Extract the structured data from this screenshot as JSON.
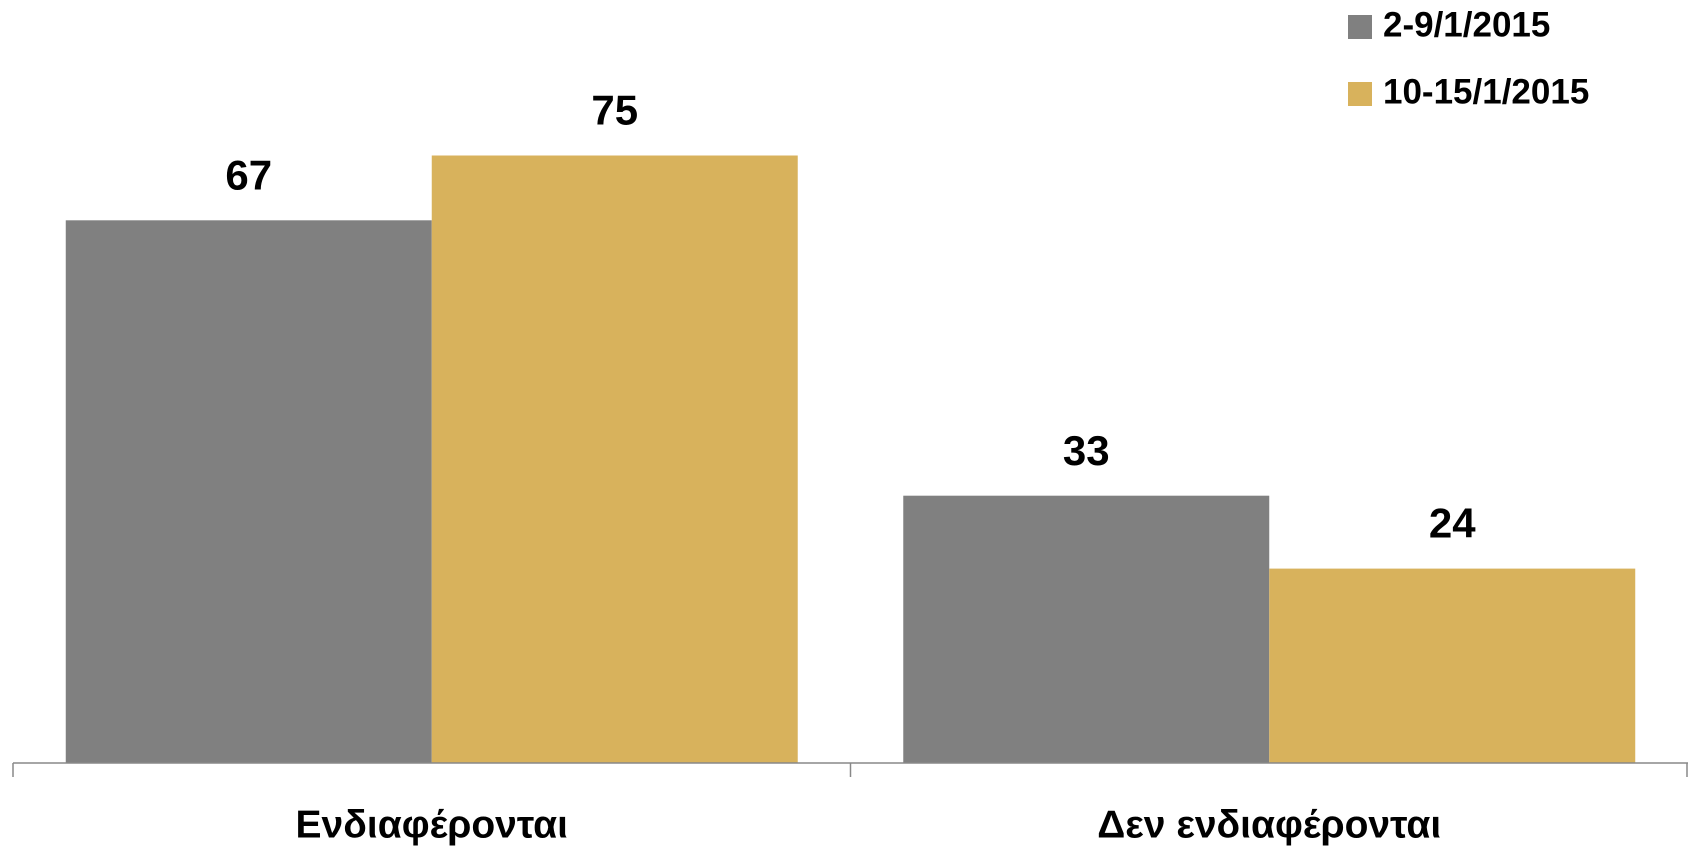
{
  "chart_data": {
    "type": "bar",
    "categories": [
      "Ενδιαφέρονται",
      "Δεν ενδιαφέρονται"
    ],
    "series": [
      {
        "name": "2-9/1/2015",
        "color": "#808080",
        "values": [
          67,
          33
        ]
      },
      {
        "name": "10-15/1/2015",
        "color": "#d8b25c",
        "values": [
          75,
          24
        ]
      }
    ],
    "ylim": [
      0,
      90
    ],
    "legend": "top-right"
  }
}
